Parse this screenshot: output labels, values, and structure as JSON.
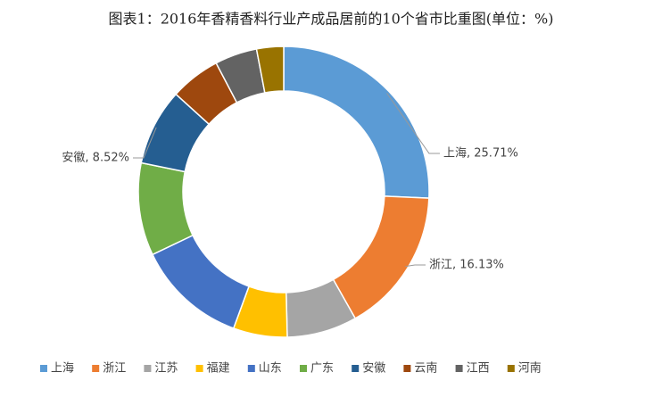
{
  "chart_data": {
    "type": "donut",
    "title": "图表1：2016年香精香料行业产成品居前的10个省市比重图(单位：%)",
    "categories": [
      "上海",
      "浙江",
      "江苏",
      "福建",
      "山东",
      "广东",
      "安徽",
      "云南",
      "江西",
      "河南"
    ],
    "series": [
      {
        "name": "比重",
        "values": [
          25.71,
          16.13,
          7.8,
          6,
          12.3,
          10.3,
          8.52,
          5.6,
          4.7,
          3.0
        ],
        "value_labels": [
          "上海, 25.71%",
          "浙江, 16.13%",
          null,
          null,
          null,
          null,
          "安徽, 8.52%",
          null,
          null,
          null
        ]
      }
    ],
    "colors": [
      "#5b9bd5",
      "#ed7d31",
      "#a5a5a5",
      "#ffc000",
      "#4472c4",
      "#70ad47",
      "#255e91",
      "#9e480e",
      "#636363",
      "#997300"
    ],
    "legend": "bottom"
  }
}
